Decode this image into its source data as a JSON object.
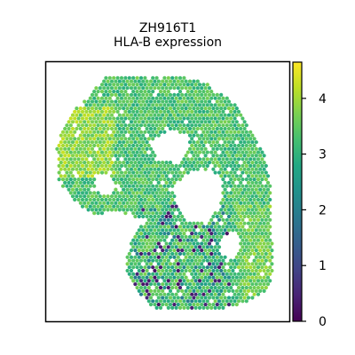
{
  "chart_data": {
    "type": "heatmap",
    "title": "ZH916T1",
    "subtitle": "HLA-B expression",
    "colormap": "viridis",
    "colorbar": {
      "min": 0,
      "max": 4.65,
      "ticks": [
        "0",
        "1",
        "2",
        "3",
        "4"
      ],
      "tick_values": [
        0,
        1,
        2,
        3,
        4
      ]
    },
    "axes_ticks_visible": false,
    "grid": false,
    "legend": "colorbar-right",
    "typical_expression": 3.3,
    "low_expression_region": "lower-center",
    "high_expression_region": "upper-left"
  }
}
